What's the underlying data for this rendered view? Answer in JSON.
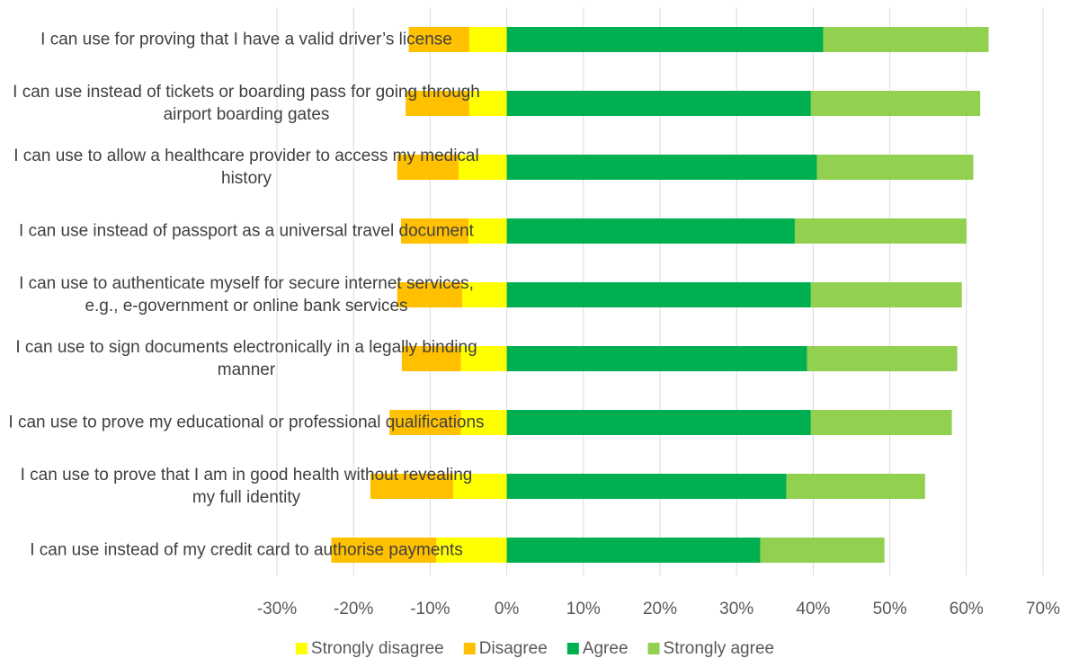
{
  "chart_data": {
    "type": "diverging_stacked_bar",
    "categories": [
      "I can use for proving that I have a valid driver’s license",
      "I can use instead of tickets or boarding pass for going through airport boarding gates",
      "I can use to allow a healthcare provider to access my medical history",
      "I can use instead of passport as a universal travel document",
      "I can use to authenticate myself for secure internet services, e.g., e-government or online bank services",
      "I can use to sign documents electronically in a legally binding manner",
      "I can use to prove my educational or professional qualifications",
      "I can use to prove that I am in good health without revealing my full identity",
      "I can use instead of my credit card to authorise payments"
    ],
    "series": [
      {
        "name": "Strongly disagree",
        "color": "#ffff00",
        "values": [
          -4.9,
          -4.9,
          -6.3,
          -5.0,
          -5.8,
          -6.0,
          -6.0,
          -7.0,
          -9.2
        ]
      },
      {
        "name": "Disagree",
        "color": "#ffc000",
        "values": [
          -7.9,
          -8.3,
          -8.0,
          -8.8,
          -8.5,
          -7.7,
          -9.3,
          -10.8,
          -13.7
        ]
      },
      {
        "name": "Agree",
        "color": "#00b050",
        "values": [
          41.3,
          39.7,
          40.5,
          37.6,
          39.7,
          39.2,
          39.7,
          36.5,
          33.1
        ]
      },
      {
        "name": "Strongly agree",
        "color": "#92d050",
        "values": [
          21.6,
          22.1,
          20.4,
          22.4,
          19.7,
          19.6,
          18.4,
          18.1,
          16.2
        ]
      }
    ],
    "xlim": [
      -30,
      70
    ],
    "xticks": [
      {
        "value": -30,
        "label": "-30%"
      },
      {
        "value": -20,
        "label": "-20%"
      },
      {
        "value": -10,
        "label": "-10%"
      },
      {
        "value": 0,
        "label": "0%"
      },
      {
        "value": 10,
        "label": "10%"
      },
      {
        "value": 20,
        "label": "20%"
      },
      {
        "value": 30,
        "label": "30%"
      },
      {
        "value": 40,
        "label": "40%"
      },
      {
        "value": 50,
        "label": "50%"
      },
      {
        "value": 60,
        "label": "60%"
      },
      {
        "value": 70,
        "label": "70%"
      }
    ],
    "grid": true,
    "legend": "bottom"
  }
}
